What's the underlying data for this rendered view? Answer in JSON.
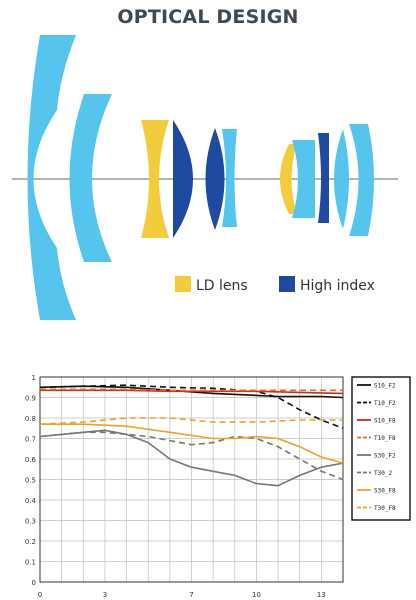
{
  "page": {
    "title": "OPTICAL DESIGN"
  },
  "lens_legend": [
    {
      "label": "LD lens",
      "color": "#F3CC3C"
    },
    {
      "label": "High index",
      "color": "#1E4AA0"
    }
  ],
  "lens_colors": {
    "standard": "#55C5EE",
    "ld": "#F3CC3C",
    "high_index": "#1E4AA0",
    "axis": "#7F8790"
  },
  "chart_data": {
    "type": "line",
    "title": "",
    "xlabel": "",
    "ylabel": "",
    "xlim": [
      0,
      14
    ],
    "ylim": [
      0,
      1
    ],
    "x_ticks": [
      "0",
      "3",
      "7",
      "10",
      "13"
    ],
    "y_ticks": [
      "0",
      "0.1",
      "0.2",
      "0.3",
      "0.4",
      "0.5",
      "0.6",
      "0.7",
      "0.8",
      "0.9",
      "1"
    ],
    "grid": true,
    "legend_position": "right",
    "series": [
      {
        "name": "S10_F2",
        "color": "#111111",
        "dash": false,
        "x": [
          0,
          2,
          4,
          6,
          8,
          10,
          11,
          12,
          13,
          14
        ],
        "y": [
          0.95,
          0.955,
          0.95,
          0.935,
          0.92,
          0.91,
          0.905,
          0.905,
          0.905,
          0.9
        ]
      },
      {
        "name": "T10_F2",
        "color": "#111111",
        "dash": true,
        "x": [
          0,
          2,
          4,
          6,
          8,
          10,
          11,
          12,
          13,
          14
        ],
        "y": [
          0.95,
          0.955,
          0.96,
          0.95,
          0.945,
          0.93,
          0.9,
          0.84,
          0.79,
          0.75
        ]
      },
      {
        "name": "S10_F8",
        "color": "#D42A1E",
        "dash": false,
        "x": [
          0,
          2,
          4,
          6,
          8,
          10,
          12,
          14
        ],
        "y": [
          0.935,
          0.935,
          0.935,
          0.93,
          0.93,
          0.93,
          0.925,
          0.92
        ]
      },
      {
        "name": "T10_F8",
        "color": "#E2701E",
        "dash": true,
        "x": [
          0,
          2,
          4,
          6,
          8,
          10,
          12,
          14
        ],
        "y": [
          0.94,
          0.94,
          0.94,
          0.935,
          0.935,
          0.935,
          0.935,
          0.935
        ]
      },
      {
        "name": "S30_F2",
        "color": "#777777",
        "dash": false,
        "x": [
          0,
          1,
          2,
          3,
          4,
          5,
          6,
          7,
          8,
          9,
          10,
          11,
          12,
          13,
          14
        ],
        "y": [
          0.71,
          0.72,
          0.73,
          0.74,
          0.72,
          0.68,
          0.6,
          0.56,
          0.54,
          0.52,
          0.48,
          0.47,
          0.52,
          0.56,
          0.58
        ]
      },
      {
        "name": "T30_2",
        "color": "#777777",
        "dash": true,
        "x": [
          0,
          1,
          2,
          3,
          4,
          5,
          6,
          7,
          8,
          9,
          10,
          11,
          12,
          13,
          14
        ],
        "y": [
          0.71,
          0.72,
          0.73,
          0.73,
          0.72,
          0.71,
          0.69,
          0.67,
          0.68,
          0.71,
          0.7,
          0.66,
          0.6,
          0.54,
          0.5
        ]
      },
      {
        "name": "S30_F8",
        "color": "#F0A21E",
        "dash": false,
        "x": [
          0,
          2,
          4,
          6,
          8,
          9,
          10,
          11,
          12,
          13,
          14
        ],
        "y": [
          0.77,
          0.77,
          0.76,
          0.73,
          0.7,
          0.7,
          0.71,
          0.7,
          0.66,
          0.61,
          0.58
        ]
      },
      {
        "name": "T30_F8",
        "color": "#F0A21E",
        "dash": true,
        "x": [
          0,
          2,
          4,
          6,
          8,
          10,
          12,
          14
        ],
        "y": [
          0.77,
          0.78,
          0.8,
          0.8,
          0.78,
          0.78,
          0.79,
          0.79
        ]
      }
    ]
  }
}
